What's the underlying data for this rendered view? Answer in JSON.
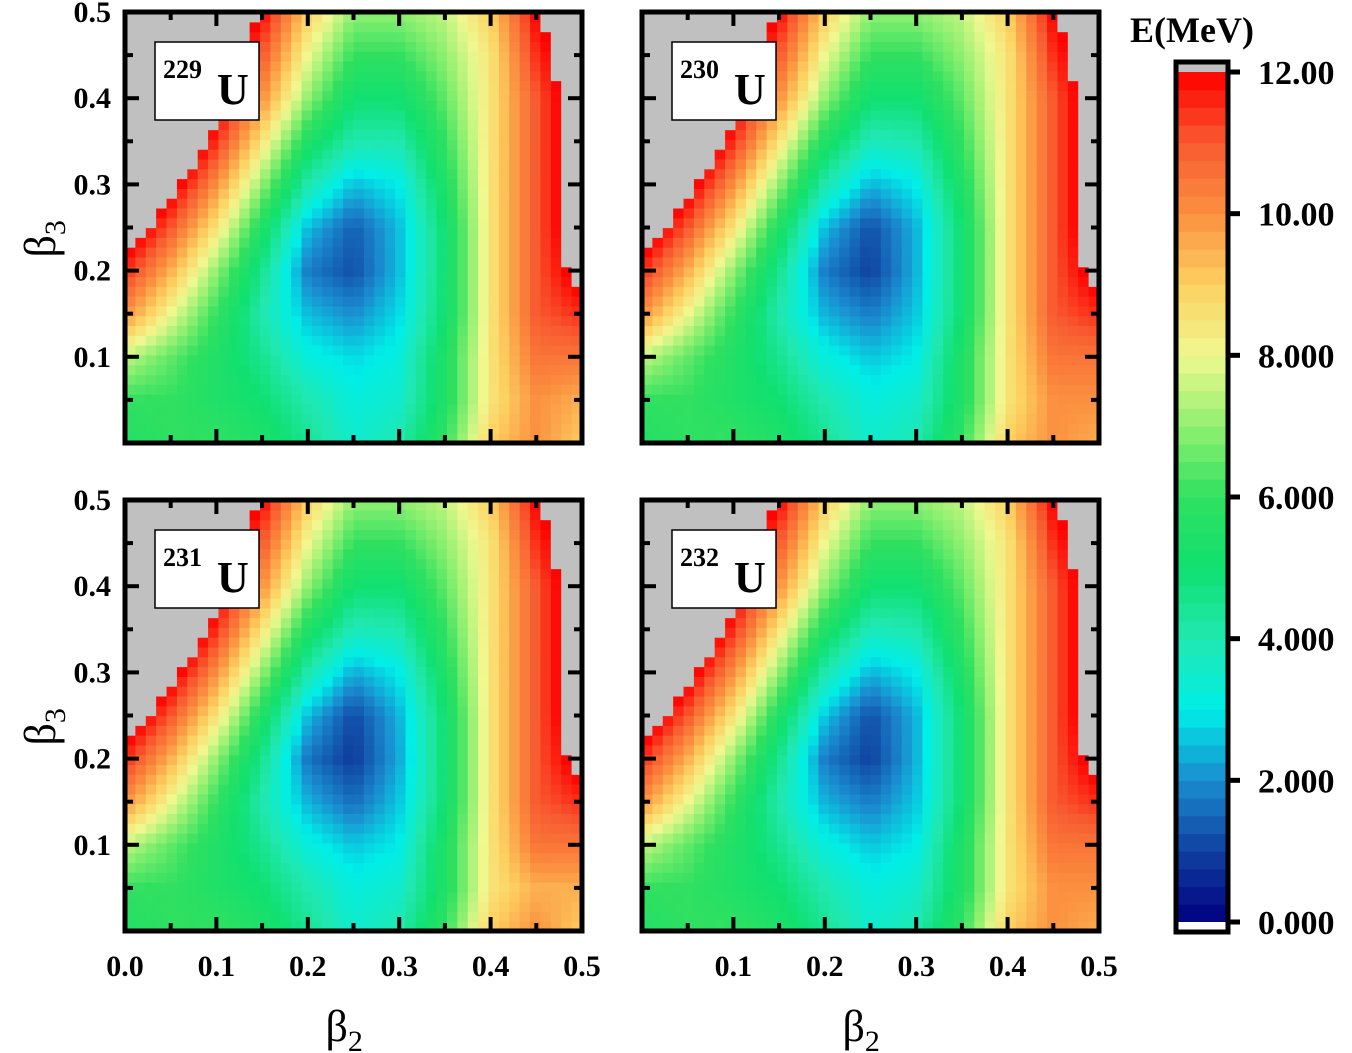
{
  "chart_data": {
    "type": "heatmap",
    "title": "",
    "xlabel": "β2",
    "ylabel": "β3",
    "xlim": [
      0,
      0.5
    ],
    "ylim": [
      0,
      0.5
    ],
    "x_ticks": [
      "0.0",
      "0.1",
      "0.2",
      "0.3",
      "0.4",
      "0.5"
    ],
    "y_ticks": [
      "0.1",
      "0.2",
      "0.3",
      "0.4",
      "0.5"
    ],
    "grid_axis": [
      0,
      0.05,
      0.1,
      0.15,
      0.2,
      0.25,
      0.3,
      0.35,
      0.4,
      0.45,
      0.5
    ],
    "colorbar": {
      "title": "E(MeV)",
      "range": [
        0,
        12
      ],
      "ticks": [
        "0.000",
        "2.000",
        "4.000",
        "6.000",
        "8.000",
        "10.00",
        "12.00"
      ],
      "over_color": "#c0c0c0"
    },
    "panels": [
      {
        "nucleus_mass": "229",
        "nucleus_symbol": "U",
        "energy_grid": [
          [
            5.5,
            6,
            6,
            5.5,
            4.5,
            3.5,
            4,
            6,
            9,
            10,
            9
          ],
          [
            6,
            6,
            5.5,
            5,
            4,
            3.2,
            3.5,
            5.5,
            8.5,
            10,
            9.5
          ],
          [
            7.5,
            6.5,
            5.5,
            4.5,
            3.2,
            2.8,
            3.2,
            5.5,
            8.5,
            10.5,
            10.5
          ],
          [
            10,
            8,
            6,
            4,
            2.5,
            2,
            2.8,
            5,
            8.5,
            11,
            11.5
          ],
          [
            11.5,
            9.5,
            7,
            4.5,
            1.8,
            1.2,
            2.5,
            5,
            8.5,
            11,
            12.5
          ],
          [
            13,
            11,
            8.5,
            5.5,
            2.5,
            1.4,
            2.5,
            5,
            8.5,
            11,
            13
          ],
          [
            14,
            12.5,
            10,
            7,
            4,
            2.5,
            3,
            5.5,
            8.5,
            11,
            13
          ],
          [
            14,
            14,
            11.5,
            8.5,
            5.5,
            4,
            4,
            6,
            8.5,
            11,
            13
          ],
          [
            14,
            14,
            12.5,
            10,
            7,
            5,
            5,
            6.5,
            8.5,
            11,
            13
          ],
          [
            14,
            14,
            13,
            11,
            8,
            6,
            6,
            7,
            8.5,
            11.5,
            13
          ],
          [
            14,
            14,
            14,
            12,
            9,
            7,
            7,
            7.5,
            9,
            12,
            13
          ]
        ]
      },
      {
        "nucleus_mass": "230",
        "nucleus_symbol": "U",
        "energy_grid": [
          [
            5.5,
            6,
            6,
            5.5,
            4.5,
            3.5,
            4,
            6,
            9,
            10,
            9.5
          ],
          [
            6,
            6,
            5.5,
            5,
            4,
            3.2,
            3.5,
            5.5,
            8.5,
            10,
            10
          ],
          [
            7.5,
            6.5,
            5.5,
            4.5,
            3.2,
            2.6,
            3,
            5.5,
            8.5,
            10.5,
            10.5
          ],
          [
            10,
            8,
            6,
            4,
            2.4,
            1.8,
            2.6,
            5,
            8.5,
            11,
            11.5
          ],
          [
            11.5,
            9.5,
            7,
            4.5,
            1.8,
            1.0,
            2.4,
            5,
            8.5,
            11,
            12.5
          ],
          [
            13,
            11,
            8.5,
            5.5,
            2.5,
            1.2,
            2.4,
            5,
            8.5,
            11,
            13
          ],
          [
            14,
            12.5,
            10,
            7,
            4,
            2.4,
            3,
            5.5,
            8.5,
            11,
            13
          ],
          [
            14,
            14,
            11.5,
            8.5,
            5.5,
            3.8,
            4,
            6,
            8.5,
            11,
            13
          ],
          [
            14,
            14,
            12.5,
            10,
            7,
            5,
            5,
            6.5,
            8.5,
            11,
            13
          ],
          [
            14,
            14,
            13,
            11,
            8,
            6,
            6,
            7,
            8.5,
            11.5,
            13
          ],
          [
            14,
            14,
            14,
            12,
            9,
            7,
            7,
            7.5,
            9,
            12,
            13
          ]
        ]
      },
      {
        "nucleus_mass": "231",
        "nucleus_symbol": "U",
        "energy_grid": [
          [
            5.5,
            6,
            6,
            5.5,
            4.5,
            3.5,
            4,
            6,
            9,
            10,
            9
          ],
          [
            6,
            6,
            5.5,
            5,
            4,
            3.2,
            3.5,
            5.5,
            8.5,
            9.5,
            9.5
          ],
          [
            7.5,
            6.5,
            5.5,
            4.5,
            3.2,
            2.6,
            3,
            5.5,
            8.5,
            10.5,
            10.5
          ],
          [
            10,
            8,
            6,
            4,
            2.4,
            1.6,
            2.6,
            5,
            8.5,
            11,
            11.5
          ],
          [
            11.5,
            9.5,
            7,
            4.5,
            1.7,
            0.9,
            2.3,
            5,
            8.5,
            11,
            12.5
          ],
          [
            13,
            11,
            8.5,
            5.5,
            2.5,
            1.1,
            2.4,
            5,
            8.5,
            11,
            13
          ],
          [
            14,
            12.5,
            10,
            7,
            4,
            2.3,
            3,
            5.5,
            8.5,
            11,
            13
          ],
          [
            14,
            14,
            11.5,
            8.5,
            5.5,
            3.8,
            4,
            6,
            8.5,
            11,
            13
          ],
          [
            14,
            14,
            12.5,
            10,
            7,
            5,
            5,
            6.5,
            8.5,
            11,
            13
          ],
          [
            14,
            14,
            13,
            11,
            8,
            6,
            6,
            7,
            8.5,
            11.5,
            13
          ],
          [
            14,
            14,
            14,
            12,
            9,
            7,
            7,
            7.5,
            9,
            12,
            13
          ]
        ]
      },
      {
        "nucleus_mass": "232",
        "nucleus_symbol": "U",
        "energy_grid": [
          [
            5.5,
            6,
            6,
            5.5,
            4.5,
            3.5,
            4,
            6,
            9,
            10,
            9.5
          ],
          [
            6,
            6,
            5.5,
            5,
            4,
            3.2,
            3.5,
            5.5,
            8.5,
            10,
            10
          ],
          [
            7.5,
            6.5,
            5.5,
            4.5,
            3.2,
            2.6,
            3,
            5.5,
            8.5,
            10.5,
            10.5
          ],
          [
            10,
            8,
            6,
            4,
            2.4,
            1.8,
            2.6,
            5,
            8.5,
            11,
            11.5
          ],
          [
            11.5,
            9.5,
            7,
            4.5,
            1.8,
            1.0,
            2.4,
            5,
            8.5,
            11,
            12.5
          ],
          [
            13,
            11,
            8.5,
            5.5,
            2.6,
            1.2,
            2.4,
            5,
            8.5,
            11,
            13
          ],
          [
            14,
            12.5,
            10,
            7,
            4,
            2.4,
            3,
            5.5,
            8.5,
            11,
            13
          ],
          [
            14,
            14,
            11.5,
            8.5,
            5.5,
            3.8,
            4,
            6,
            8.5,
            11,
            13
          ],
          [
            14,
            14,
            12.5,
            10,
            7,
            5,
            5,
            6.5,
            8.5,
            11,
            13
          ],
          [
            14,
            14,
            13,
            11,
            8,
            6,
            6,
            7,
            8.5,
            11.5,
            13
          ],
          [
            14,
            14,
            14,
            12,
            9,
            7,
            7,
            7.5,
            9,
            12,
            13
          ]
        ]
      }
    ]
  }
}
